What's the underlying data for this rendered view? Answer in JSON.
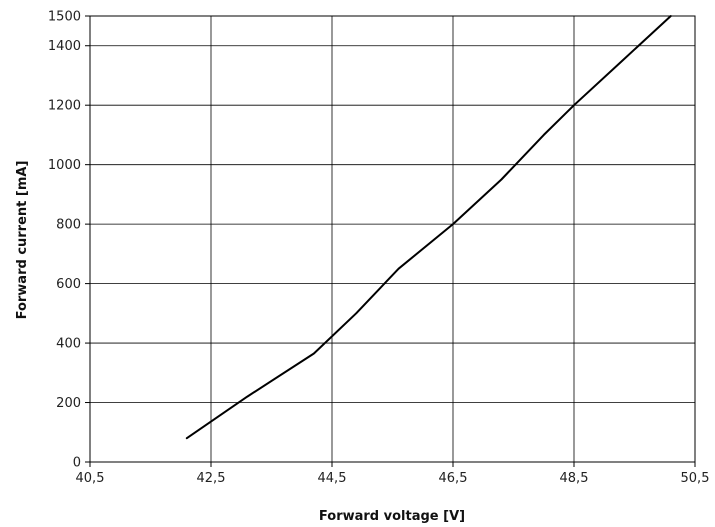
{
  "chart_data": {
    "type": "line",
    "xlabel": "Forward voltage [V]",
    "ylabel": "Forward current [mA]",
    "xlim": [
      40.5,
      50.5
    ],
    "ylim": [
      0,
      1500
    ],
    "x_ticks": [
      40.5,
      42.5,
      44.5,
      46.5,
      48.5,
      50.5
    ],
    "x_tick_labels": [
      "40,5",
      "42,5",
      "44,5",
      "46,5",
      "48,5",
      "50,5"
    ],
    "y_ticks": [
      0,
      200,
      400,
      600,
      800,
      1000,
      1200,
      1400,
      1500
    ],
    "y_tick_labels": [
      "0",
      "200",
      "400",
      "600",
      "800",
      "1000",
      "1200",
      "1400",
      "1500"
    ],
    "grid": true,
    "series": [
      {
        "color": "#000000",
        "x": [
          42.1,
          43.1,
          44.2,
          44.9,
          45.6,
          46.5,
          47.3,
          48.0,
          48.5,
          49.3,
          50.1
        ],
        "y": [
          80,
          220,
          365,
          500,
          650,
          800,
          950,
          1100,
          1200,
          1350,
          1500
        ]
      }
    ]
  }
}
